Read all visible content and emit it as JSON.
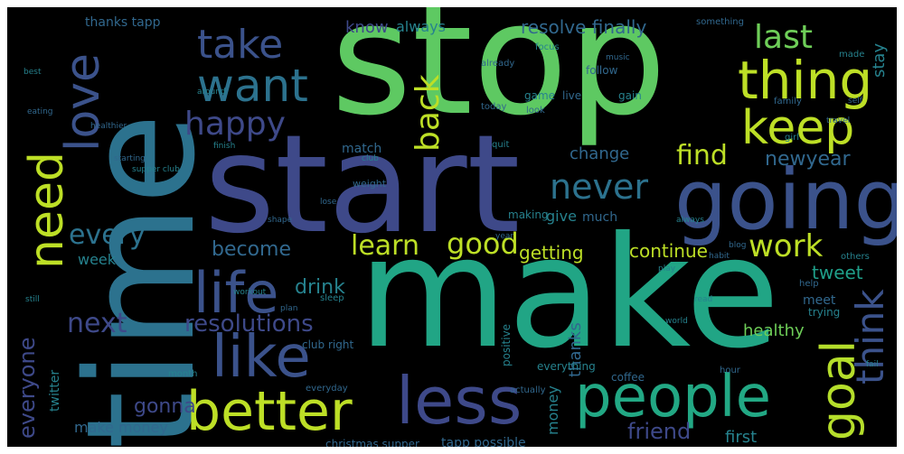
{
  "words": {
    "stop": "stop",
    "start": "start",
    "make": "make",
    "time": "time",
    "going": "going",
    "people": "people",
    "less": "less",
    "better": "better",
    "life": "life",
    "like": "like",
    "thing": "thing",
    "keep": "keep",
    "want": "want",
    "take": "take",
    "love": "love",
    "need": "need",
    "goal": "goal",
    "think": "think",
    "back": "back",
    "happy": "happy",
    "last": "last",
    "never": "never",
    "find": "find",
    "work": "work",
    "good": "good",
    "learn": "learn",
    "every": "every",
    "next": "next",
    "resolutions": "resolutions",
    "everyone": "everyone",
    "gonna": "gonna",
    "friend": "friend",
    "drink": "drink",
    "become": "become",
    "continue": "continue",
    "getting": "getting",
    "change": "change",
    "newyear": "newyear",
    "resolve_finally": "resolve finally",
    "know": "know",
    "always": "always",
    "thanks_tapp": "thanks tapp",
    "tweet": "tweet",
    "healthy": "healthy",
    "week": "week",
    "make_money": "make money",
    "money": "money",
    "thanks": "thanks",
    "first": "first",
    "give": "give",
    "much": "much",
    "stay": "stay",
    "tapp_possible": "tapp possible",
    "twitter": "twitter",
    "christmas_supper": "christmas supper",
    "club_right": "club right",
    "everything": "everything",
    "coffee": "coffee",
    "meet": "meet",
    "trying": "trying",
    "positive": "positive",
    "match": "match",
    "game": "game",
    "live": "live",
    "follow": "follow",
    "gain": "gain",
    "making": "making",
    "weight": "weight",
    "help": "help",
    "family": "family",
    "made": "made",
    "others": "others",
    "everyday": "everyday",
    "actually": "actually",
    "month": "month",
    "hour": "hour",
    "sleep": "sleep",
    "quit": "quit",
    "look": "look",
    "today": "today",
    "girl": "girl",
    "already": "already",
    "focus": "focus",
    "something": "something",
    "around": "around",
    "healthier": "healthier",
    "finish": "finish",
    "starting": "starting",
    "supper_club": "supper club",
    "music": "music",
    "read": "read",
    "plan": "plan",
    "best": "best",
    "self": "self",
    "still": "still",
    "shape": "shape",
    "world": "world",
    "lose": "lose",
    "club": "club",
    "eating": "eating",
    "workout": "workout",
    "habit": "habit",
    "fail": "fail",
    "year": "year",
    "play": "play",
    "travel": "travel",
    "always2": "always",
    "blog": "blog"
  },
  "colors": [
    "#fde725",
    "#b5de2b",
    "#6ece58",
    "#35b779",
    "#1f9e89",
    "#26828e",
    "#31688e",
    "#3e4989",
    "#482878",
    "#440154"
  ]
}
